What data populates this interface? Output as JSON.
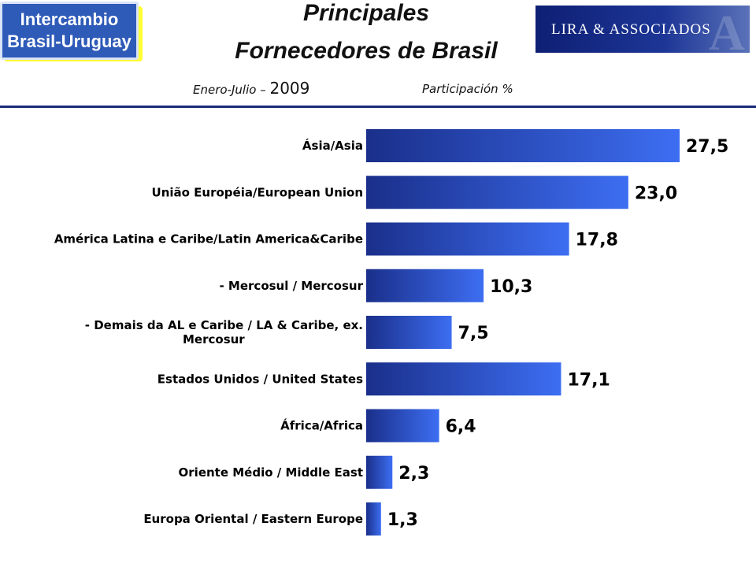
{
  "logo_left": {
    "line1": "Intercambio",
    "line2": "Brasil-Uruguay"
  },
  "logo_right": {
    "text": "LIRA & ASSOCIADOS",
    "watermark": "A"
  },
  "title": {
    "line1": "Principales",
    "line2": "Fornecedores de Brasil"
  },
  "subtitle": {
    "period": "Enero-Julio",
    "dash": "–",
    "year": "2009",
    "unit": "Participación %"
  },
  "colors": {
    "bar_start": "#1a2f8a",
    "bar_end": "#3d6ef2",
    "rule": "#1c2b78",
    "logo_left_bg": "#2e5ab8",
    "logo_left_shadow": "#ffff33",
    "logo_right_bg": "#0e1f74"
  },
  "chart_data": {
    "type": "bar",
    "orientation": "horizontal",
    "title": "Principales Fornecedores de Brasil",
    "subtitle": "Enero-Julio – 2009",
    "unit": "Participación %",
    "grid": false,
    "categories": [
      [
        "Ásia/Asia"
      ],
      [
        "União Européia/European Union"
      ],
      [
        "América Latina e Caribe/Latin America&Caribe"
      ],
      [
        "- Mercosul / Mercosur"
      ],
      [
        "- Demais da AL e Caribe / LA & Caribe, ex.",
        "Mercosur"
      ],
      [
        "Estados Unidos / United States"
      ],
      [
        "África/Africa"
      ],
      [
        "Oriente Médio / Middle East"
      ],
      [
        "Europa Oriental / Eastern Europe"
      ]
    ],
    "values": [
      27.5,
      23.0,
      17.8,
      10.3,
      7.5,
      17.1,
      6.4,
      2.3,
      1.3
    ],
    "value_labels": [
      "27,5",
      "23,0",
      "17,8",
      "10,3",
      "7,5",
      "17,1",
      "6,4",
      "2,3",
      "1,3"
    ],
    "xlim": [
      0,
      27.5
    ]
  }
}
